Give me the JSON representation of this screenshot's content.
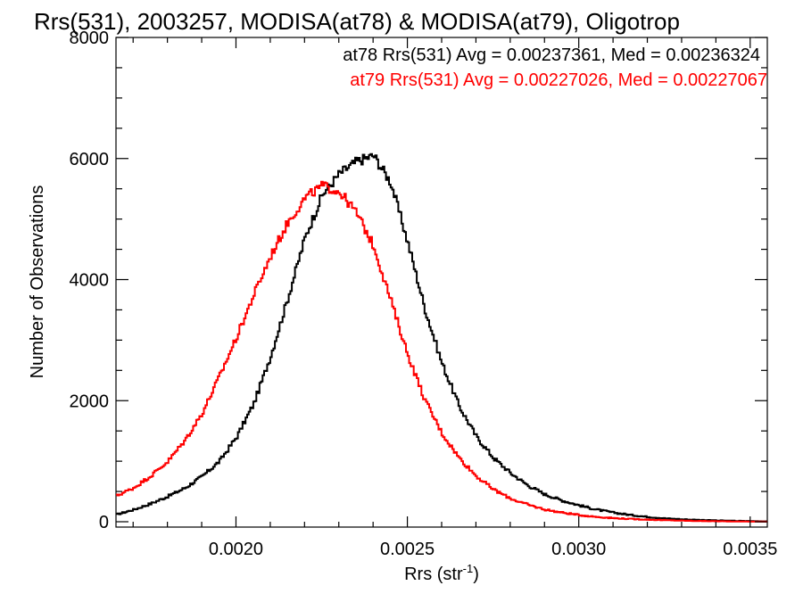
{
  "chart_data": {
    "type": "line",
    "step": true,
    "title": "Rrs(531), 2003257, MODISA(at78) & MODISA(at79), Oligotrop",
    "xlabel_main": "Rrs (str",
    "xlabel_sup": "-1",
    "xlabel_close": ")",
    "ylabel": "Number of Observations",
    "xlim": [
      0.00165,
      0.00355
    ],
    "ylim": [
      0,
      8000
    ],
    "x_ticks": [
      {
        "value": 0.002,
        "label": "0.0020"
      },
      {
        "value": 0.0025,
        "label": "0.0025"
      },
      {
        "value": 0.003,
        "label": "0.0030"
      },
      {
        "value": 0.0035,
        "label": "0.0035"
      }
    ],
    "y_ticks": [
      {
        "value": 0,
        "label": "0"
      },
      {
        "value": 2000,
        "label": "2000"
      },
      {
        "value": 4000,
        "label": "4000"
      },
      {
        "value": 6000,
        "label": "6000"
      },
      {
        "value": 8000,
        "label": "8000"
      }
    ],
    "legend_position": "top-right",
    "series": [
      {
        "name": "at78",
        "legend": "at78 Rrs(531) Avg = 0.00237361, Med = 0.00236324",
        "color": "#000000",
        "x": [
          0.00165,
          0.0017,
          0.00175,
          0.0018,
          0.00185,
          0.0019,
          0.00195,
          0.002,
          0.00205,
          0.0021,
          0.00215,
          0.0022,
          0.00225,
          0.0023,
          0.00235,
          0.0024,
          0.00245,
          0.0025,
          0.00255,
          0.0026,
          0.00265,
          0.0027,
          0.00275,
          0.0028,
          0.00285,
          0.0029,
          0.00295,
          0.003,
          0.00305,
          0.0031,
          0.00315,
          0.0032,
          0.00325,
          0.0033,
          0.00335,
          0.0034,
          0.00345,
          0.0035,
          0.00355
        ],
        "y": [
          120,
          200,
          300,
          420,
          560,
          750,
          1000,
          1400,
          1950,
          2750,
          3700,
          4700,
          5400,
          5750,
          5950,
          6050,
          5600,
          4600,
          3500,
          2600,
          1900,
          1400,
          1050,
          800,
          600,
          450,
          350,
          270,
          200,
          150,
          110,
          80,
          55,
          40,
          30,
          20,
          15,
          10,
          5
        ]
      },
      {
        "name": "at79",
        "legend": "at79 Rrs(531) Avg = 0.00227026, Med = 0.00227067",
        "color": "#ff0000",
        "x": [
          0.00165,
          0.0017,
          0.00175,
          0.0018,
          0.00185,
          0.0019,
          0.00195,
          0.002,
          0.00205,
          0.0021,
          0.00215,
          0.0022,
          0.00225,
          0.0023,
          0.00235,
          0.0024,
          0.00245,
          0.0025,
          0.00255,
          0.0026,
          0.00265,
          0.0027,
          0.00275,
          0.0028,
          0.00285,
          0.0029,
          0.00295,
          0.003,
          0.00305,
          0.0031,
          0.00315,
          0.0032,
          0.00325,
          0.0033,
          0.00335,
          0.0034,
          0.00345,
          0.0035,
          0.00355
        ],
        "y": [
          430,
          560,
          760,
          1000,
          1350,
          1800,
          2400,
          3050,
          3750,
          4400,
          4950,
          5350,
          5550,
          5450,
          5100,
          4550,
          3650,
          2750,
          2000,
          1450,
          1050,
          750,
          530,
          380,
          280,
          200,
          150,
          110,
          80,
          60,
          45,
          35,
          25,
          18,
          12,
          8,
          5,
          3,
          2
        ]
      }
    ]
  }
}
